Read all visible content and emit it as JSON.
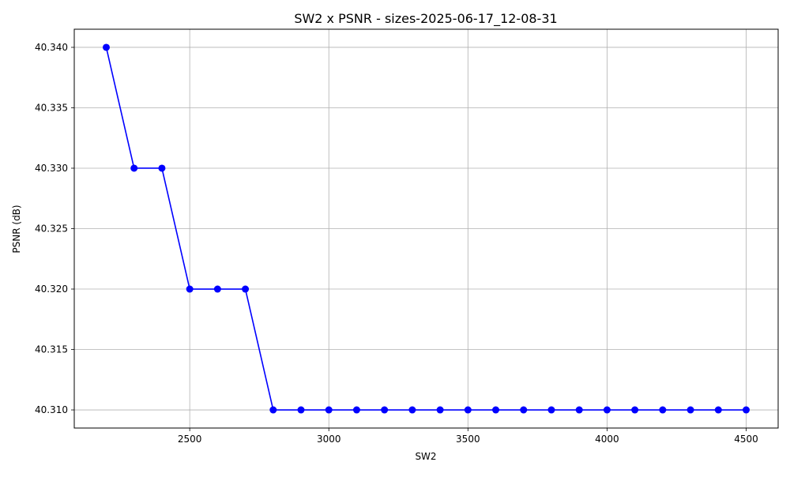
{
  "chart_data": {
    "type": "line",
    "title": "SW2 x PSNR - sizes-2025-06-17_12-08-31",
    "xlabel": "SW2",
    "ylabel": "PSNR (dB)",
    "xlim": [
      2085,
      4615
    ],
    "ylim": [
      40.3085,
      40.3415
    ],
    "xticks": [
      2500,
      3000,
      3500,
      4000,
      4500
    ],
    "xtick_labels": [
      "2500",
      "3000",
      "3500",
      "4000",
      "4500"
    ],
    "yticks": [
      40.31,
      40.315,
      40.32,
      40.325,
      40.33,
      40.335,
      40.34
    ],
    "ytick_labels": [
      "40.310",
      "40.315",
      "40.320",
      "40.325",
      "40.330",
      "40.335",
      "40.340"
    ],
    "grid": true,
    "series": [
      {
        "color": "#0000ff",
        "marker": "circle",
        "x": [
          2200,
          2300,
          2400,
          2500,
          2600,
          2700,
          2800,
          2900,
          3000,
          3100,
          3200,
          3300,
          3400,
          3500,
          3600,
          3700,
          3800,
          3900,
          4000,
          4100,
          4200,
          4300,
          4400,
          4500
        ],
        "y": [
          40.34,
          40.33,
          40.33,
          40.32,
          40.32,
          40.32,
          40.31,
          40.31,
          40.31,
          40.31,
          40.31,
          40.31,
          40.31,
          40.31,
          40.31,
          40.31,
          40.31,
          40.31,
          40.31,
          40.31,
          40.31,
          40.31,
          40.31,
          40.31
        ]
      }
    ]
  }
}
